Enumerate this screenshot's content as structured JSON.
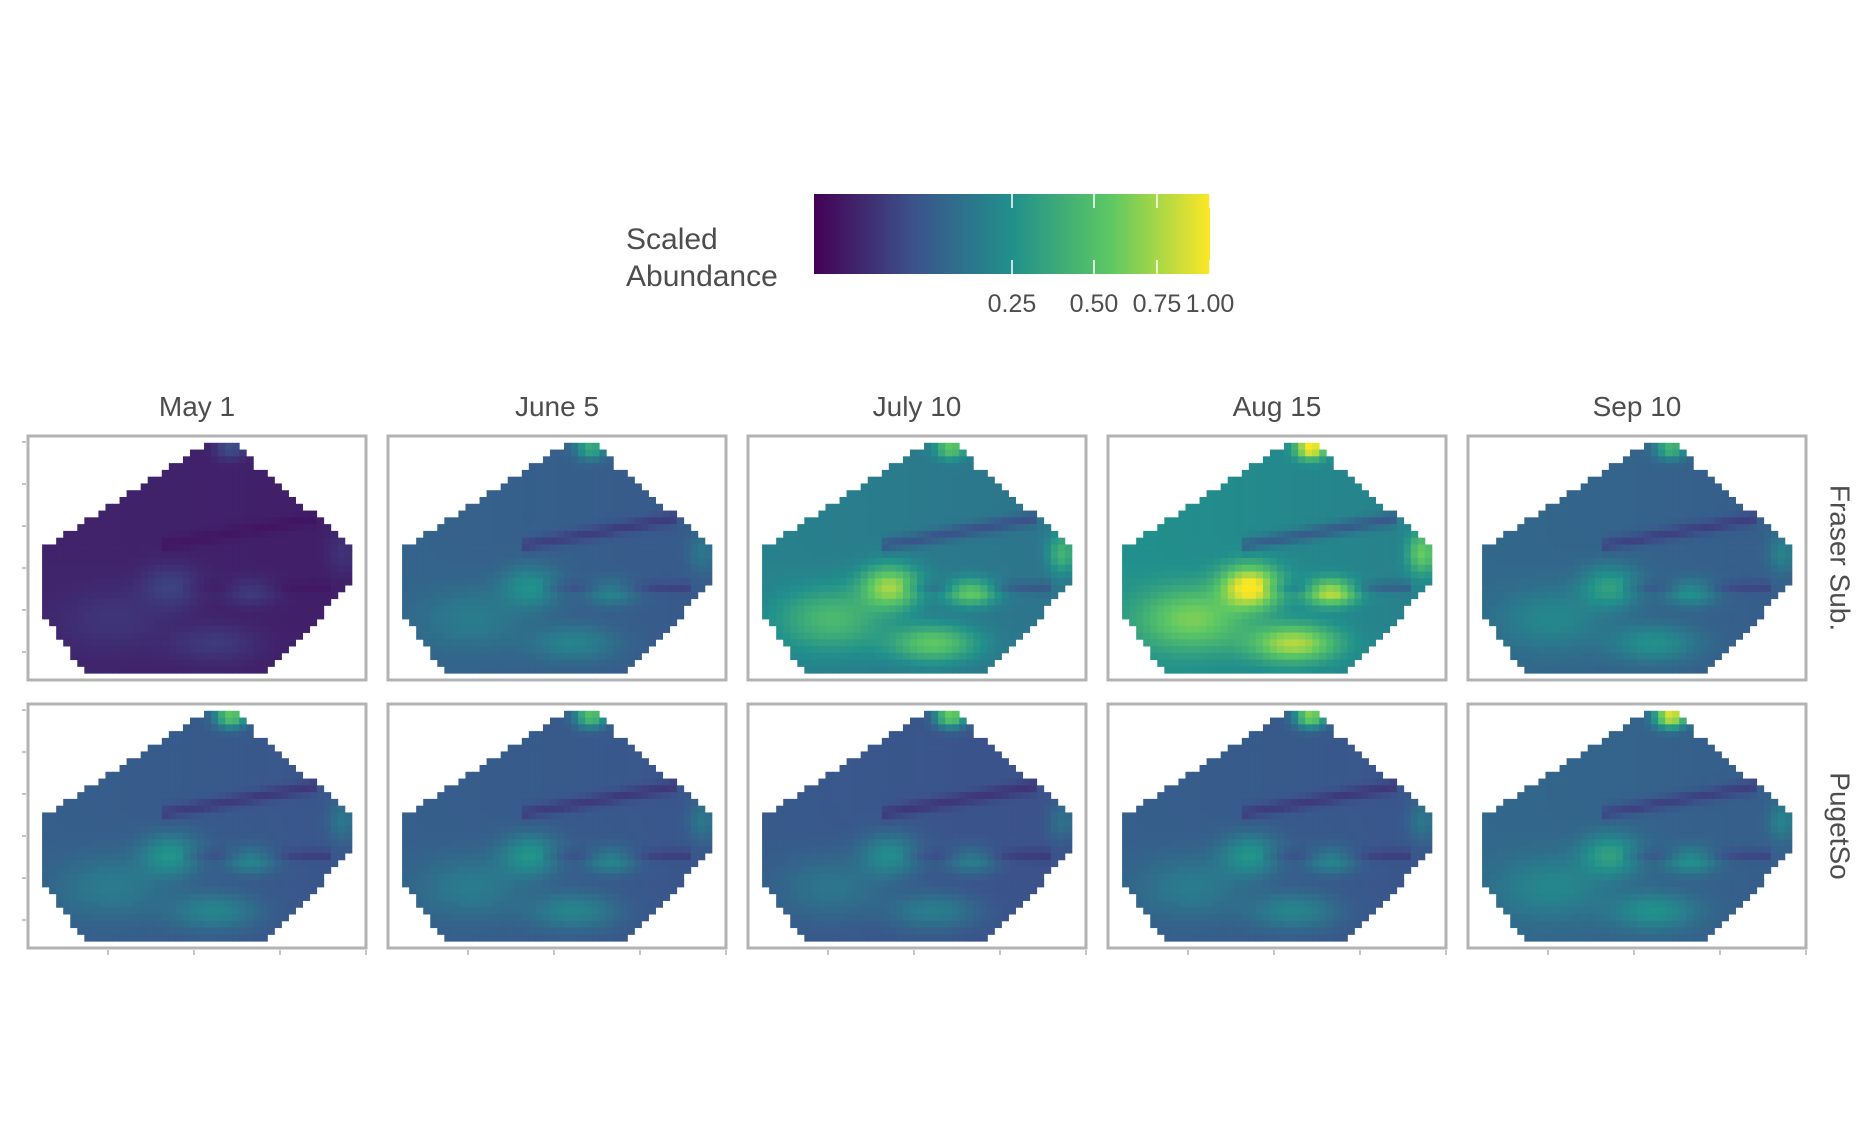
{
  "chart_data": {
    "type": "heatmap",
    "title": "",
    "xlabel": "",
    "ylabel": "",
    "legend": {
      "title_lines": [
        "Scaled",
        "Abundance"
      ],
      "placement": "top",
      "colormap": "viridis",
      "colors": [
        "#440154",
        "#3b528b",
        "#21908c",
        "#5dc863",
        "#fde725"
      ],
      "ticks": [
        0.25,
        0.5,
        0.75,
        1.0
      ],
      "tick_labels": [
        "0.25",
        "0.50",
        "0.75",
        "1.00"
      ],
      "value_range_transform": "sqrt",
      "range": [
        0,
        1
      ]
    },
    "columns": [
      "May 1",
      "June 5",
      "July 10",
      "Aug 15",
      "Sep 10"
    ],
    "rows": [
      "Fraser Sub.",
      "PugetSo"
    ],
    "grid": false,
    "panel_border_color": "#b3b3b3",
    "panels": [
      {
        "row": "Fraser Sub.",
        "column": "May 1",
        "base": 0.01,
        "hot": 0.03,
        "north": 0.05
      },
      {
        "row": "Fraser Sub.",
        "column": "June 5",
        "base": 0.09,
        "hot": 0.16,
        "north": 0.3
      },
      {
        "row": "Fraser Sub.",
        "column": "July 10",
        "base": 0.17,
        "hot": 0.55,
        "north": 0.4
      },
      {
        "row": "Fraser Sub.",
        "column": "Aug 15",
        "base": 0.22,
        "hot": 0.8,
        "north": 0.85
      },
      {
        "row": "Fraser Sub.",
        "column": "Sep 10",
        "base": 0.1,
        "hot": 0.22,
        "north": 0.35
      },
      {
        "row": "PugetSo",
        "column": "May 1",
        "base": 0.08,
        "hot": 0.18,
        "north": 0.5
      },
      {
        "row": "PugetSo",
        "column": "June 5",
        "base": 0.08,
        "hot": 0.18,
        "north": 0.45
      },
      {
        "row": "PugetSo",
        "column": "July 10",
        "base": 0.07,
        "hot": 0.16,
        "north": 0.55
      },
      {
        "row": "PugetSo",
        "column": "Aug 15",
        "base": 0.08,
        "hot": 0.18,
        "north": 0.6
      },
      {
        "row": "PugetSo",
        "column": "Sep 10",
        "base": 0.1,
        "hot": 0.22,
        "north": 0.85
      }
    ]
  }
}
